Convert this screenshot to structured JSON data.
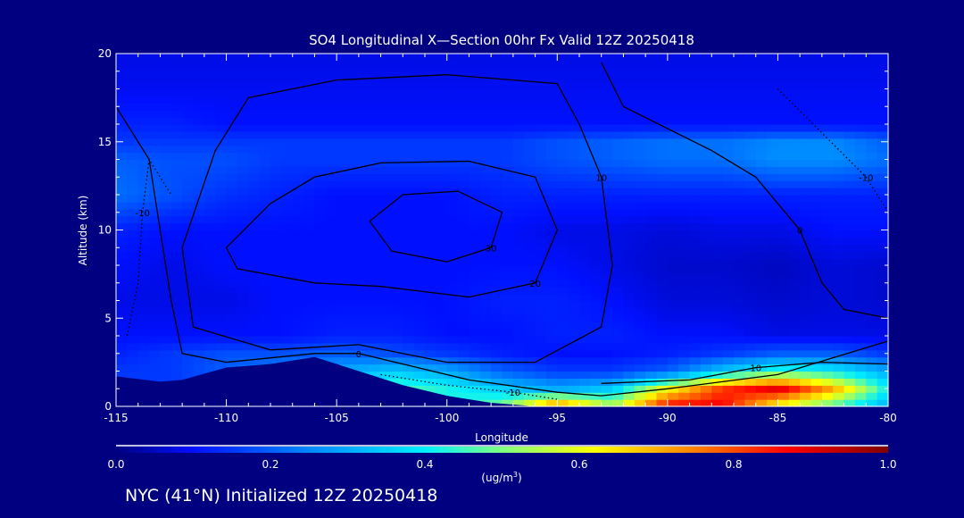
{
  "chart_data": {
    "type": "heatmap",
    "title": "SO4 Longitudinal X—Section 00hr  Fx Valid 12Z 20250418",
    "xlabel": "Longitude",
    "ylabel": "Altitude (km)",
    "xlim": [
      -115,
      -80
    ],
    "ylim": [
      0,
      20
    ],
    "xticks": [
      "-115",
      "-110",
      "-105",
      "-100",
      "-95",
      "-90",
      "-85",
      "-80"
    ],
    "xtick_values": [
      -115,
      -110,
      -105,
      -100,
      -95,
      -90,
      -85,
      -80
    ],
    "yticks": [
      "0",
      "5",
      "10",
      "15",
      "20"
    ],
    "ytick_values": [
      0,
      5,
      10,
      15,
      20
    ],
    "colorbar": {
      "ticks": [
        "0.0",
        "0.2",
        "0.4",
        "0.6",
        "0.8",
        "1.0"
      ],
      "tick_values": [
        0,
        0.2,
        0.4,
        0.6,
        0.8,
        1.0
      ],
      "units_prefix": "(ug/m",
      "units_sup": "3",
      "units_suffix": ")",
      "range": [
        0,
        1
      ],
      "stops": [
        [
          0,
          "#000080"
        ],
        [
          0.1,
          "#0010ff"
        ],
        [
          0.25,
          "#0088ff"
        ],
        [
          0.4,
          "#00f0ff"
        ],
        [
          0.5,
          "#80ff80"
        ],
        [
          0.62,
          "#ffff00"
        ],
        [
          0.75,
          "#ff8000"
        ],
        [
          0.87,
          "#ff0000"
        ],
        [
          1,
          "#800000"
        ]
      ]
    },
    "field": {
      "lon": [
        -115,
        -112.5,
        -110,
        -107.5,
        -105,
        -102.5,
        -100,
        -97.5,
        -95,
        -92.5,
        -90,
        -87.5,
        -85,
        -82.5,
        -80
      ],
      "alt": [
        0,
        1,
        2,
        3,
        4,
        6,
        8,
        10,
        12,
        14,
        15,
        16,
        18,
        20
      ],
      "values": [
        [
          0.1,
          0.1,
          0.1,
          0.1,
          0.15,
          0.35,
          0.42,
          0.5,
          0.78,
          0.55,
          0.88,
          0.88,
          0.6,
          0.45,
          0.3
        ],
        [
          0.15,
          0.15,
          0.15,
          0.2,
          0.3,
          0.47,
          0.42,
          0.35,
          0.3,
          0.35,
          0.62,
          0.82,
          0.9,
          0.7,
          0.4
        ],
        [
          0.15,
          0.15,
          0.2,
          0.25,
          0.3,
          0.35,
          0.3,
          0.2,
          0.15,
          0.15,
          0.2,
          0.35,
          0.45,
          0.4,
          0.3
        ],
        [
          0.12,
          0.15,
          0.18,
          0.18,
          0.2,
          0.18,
          0.15,
          0.12,
          0.1,
          0.1,
          0.12,
          0.15,
          0.2,
          0.2,
          0.15
        ],
        [
          0.1,
          0.1,
          0.1,
          0.1,
          0.12,
          0.12,
          0.1,
          0.1,
          0.12,
          0.12,
          0.1,
          0.1,
          0.08,
          0.08,
          0.08
        ],
        [
          0.08,
          0.08,
          0.08,
          0.1,
          0.1,
          0.1,
          0.1,
          0.12,
          0.12,
          0.1,
          0.07,
          0.07,
          0.06,
          0.07,
          0.06
        ],
        [
          0.1,
          0.08,
          0.1,
          0.1,
          0.1,
          0.1,
          0.1,
          0.1,
          0.1,
          0.08,
          0.06,
          0.06,
          0.05,
          0.07,
          0.06
        ],
        [
          0.12,
          0.1,
          0.1,
          0.1,
          0.1,
          0.1,
          0.1,
          0.1,
          0.08,
          0.08,
          0.07,
          0.08,
          0.08,
          0.1,
          0.1
        ],
        [
          0.22,
          0.18,
          0.14,
          0.12,
          0.1,
          0.1,
          0.1,
          0.12,
          0.12,
          0.12,
          0.12,
          0.12,
          0.12,
          0.12,
          0.12
        ],
        [
          0.2,
          0.18,
          0.18,
          0.15,
          0.15,
          0.15,
          0.15,
          0.15,
          0.18,
          0.2,
          0.22,
          0.22,
          0.26,
          0.26,
          0.22
        ],
        [
          0.15,
          0.15,
          0.15,
          0.15,
          0.15,
          0.15,
          0.15,
          0.15,
          0.18,
          0.2,
          0.22,
          0.22,
          0.25,
          0.25,
          0.2
        ],
        [
          0.12,
          0.12,
          0.1,
          0.1,
          0.1,
          0.1,
          0.1,
          0.1,
          0.1,
          0.1,
          0.1,
          0.1,
          0.1,
          0.1,
          0.1
        ],
        [
          0.09,
          0.09,
          0.09,
          0.09,
          0.09,
          0.09,
          0.09,
          0.09,
          0.09,
          0.09,
          0.09,
          0.09,
          0.09,
          0.09,
          0.09
        ],
        [
          0.08,
          0.08,
          0.08,
          0.08,
          0.08,
          0.08,
          0.08,
          0.08,
          0.08,
          0.08,
          0.08,
          0.08,
          0.08,
          0.08,
          0.08
        ]
      ]
    },
    "terrain": [
      [
        -115,
        1.7
      ],
      [
        -113,
        1.4
      ],
      [
        -112,
        1.5
      ],
      [
        -110,
        2.2
      ],
      [
        -108,
        2.4
      ],
      [
        -106,
        2.8
      ],
      [
        -104,
        2.0
      ],
      [
        -102,
        1.2
      ],
      [
        -100,
        0.6
      ],
      [
        -98,
        0.2
      ],
      [
        -96,
        0
      ],
      [
        -80,
        0
      ]
    ],
    "contours": [
      {
        "label": "30",
        "dashed": false,
        "points": [
          [
            -103.5,
            10.5
          ],
          [
            -102,
            12
          ],
          [
            -99.5,
            12.2
          ],
          [
            -97.5,
            11
          ],
          [
            -98,
            9
          ],
          [
            -100,
            8.2
          ],
          [
            -102.5,
            8.8
          ],
          [
            -103.5,
            10.5
          ]
        ]
      },
      {
        "label": "20",
        "dashed": false,
        "points": [
          [
            -108,
            11.5
          ],
          [
            -106,
            13
          ],
          [
            -103,
            13.8
          ],
          [
            -99,
            13.9
          ],
          [
            -96,
            13
          ],
          [
            -95,
            10
          ],
          [
            -96,
            7
          ],
          [
            -99,
            6.2
          ],
          [
            -103,
            6.8
          ],
          [
            -106,
            7
          ],
          [
            -109.5,
            7.8
          ],
          [
            -110,
            9
          ],
          [
            -108,
            11.5
          ]
        ]
      },
      {
        "label": "10",
        "dashed": false,
        "points": [
          [
            -111.5,
            4.5
          ],
          [
            -112,
            9
          ],
          [
            -110.5,
            14.5
          ],
          [
            -109,
            17.5
          ],
          [
            -105,
            18.5
          ],
          [
            -100,
            18.8
          ],
          [
            -95,
            18.3
          ],
          [
            -94,
            16
          ],
          [
            -93,
            13
          ],
          [
            -92.5,
            8
          ],
          [
            -93,
            4.5
          ],
          [
            -96,
            2.5
          ],
          [
            -100,
            2.5
          ],
          [
            -104,
            3.5
          ],
          [
            -108,
            3.2
          ],
          [
            -111.5,
            4.5
          ]
        ]
      },
      {
        "label": "0",
        "dashed": false,
        "points": [
          [
            -115,
            17
          ],
          [
            -113.5,
            14
          ],
          [
            -113,
            10
          ],
          [
            -112.5,
            6
          ],
          [
            -112,
            3
          ],
          [
            -110,
            2.5
          ],
          [
            -106,
            3
          ],
          [
            -104,
            3
          ],
          [
            -99,
            1.5
          ],
          [
            -95,
            0.8
          ],
          [
            -93,
            0.6
          ],
          [
            -90,
            1
          ],
          [
            -85,
            1.8
          ],
          [
            -80,
            3.7
          ]
        ]
      },
      {
        "label": "0",
        "dashed": false,
        "points": [
          [
            -93,
            19.5
          ],
          [
            -92,
            17
          ],
          [
            -88,
            14.5
          ],
          [
            -86,
            13
          ],
          [
            -84,
            10
          ],
          [
            -83,
            7
          ],
          [
            -82,
            5.5
          ],
          [
            -80,
            5
          ]
        ]
      },
      {
        "label": "-10",
        "dashed": true,
        "points": [
          [
            -114.5,
            4
          ],
          [
            -114,
            7
          ],
          [
            -113.8,
            11
          ],
          [
            -113.5,
            14
          ],
          [
            -112.5,
            12
          ]
        ]
      },
      {
        "label": "-10",
        "dashed": true,
        "points": [
          [
            -103,
            1.8
          ],
          [
            -100,
            1.2
          ],
          [
            -97,
            0.8
          ],
          [
            -95,
            0.4
          ]
        ]
      },
      {
        "label": "-10",
        "dashed": true,
        "points": [
          [
            -85,
            18
          ],
          [
            -83,
            15.5
          ],
          [
            -81,
            13
          ],
          [
            -80,
            11
          ]
        ]
      },
      {
        "label": "10",
        "dashed": false,
        "points": [
          [
            -93,
            1.3
          ],
          [
            -89,
            1.5
          ],
          [
            -86,
            2.2
          ],
          [
            -83,
            2.5
          ],
          [
            -80,
            2.4
          ]
        ]
      }
    ]
  },
  "footer": {
    "caption": "NYC (41°N) Initialized 12Z 20250418"
  }
}
